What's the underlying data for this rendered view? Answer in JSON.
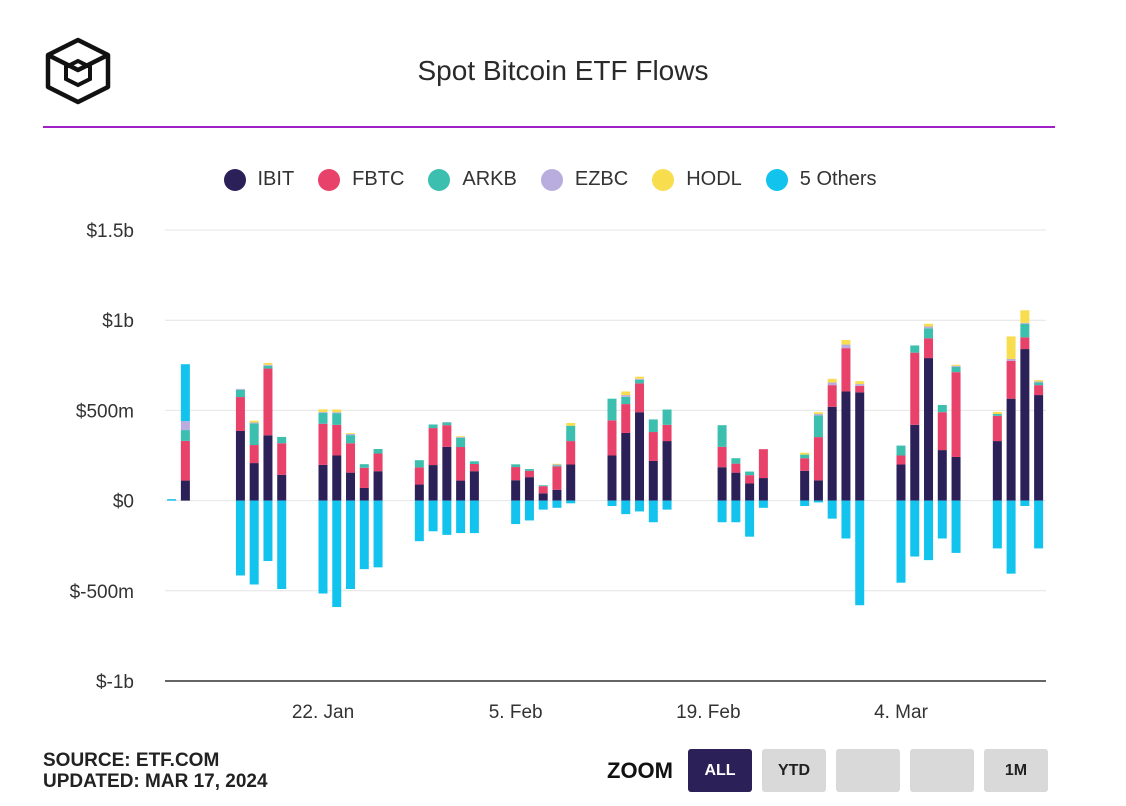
{
  "title": "Spot Bitcoin ETF Flows",
  "legend": [
    {
      "name": "IBIT",
      "color": "#2b2057"
    },
    {
      "name": "FBTC",
      "color": "#e8416a"
    },
    {
      "name": "ARKB",
      "color": "#3dbfb0"
    },
    {
      "name": "EZBC",
      "color": "#b9addf"
    },
    {
      "name": "HODL",
      "color": "#f8dd4e"
    },
    {
      "name": "5 Others",
      "color": "#12c3ee"
    }
  ],
  "footer": {
    "source": "SOURCE: ETF.COM",
    "updated": "UPDATED: MAR 17, 2024"
  },
  "zoom": {
    "label": "ZOOM",
    "buttons": [
      {
        "label": "ALL",
        "active": true
      },
      {
        "label": "YTD",
        "active": false
      },
      {
        "label": "",
        "active": false
      },
      {
        "label": "",
        "active": false
      },
      {
        "label": "1M",
        "active": false
      }
    ]
  },
  "chart_data": {
    "type": "bar",
    "stacked": true,
    "ylim": [
      -1000,
      1500
    ],
    "y_unit": "USD millions",
    "y_ticks": [
      -1000,
      -500,
      0,
      500,
      1000,
      1500
    ],
    "y_tick_labels": [
      "$-1b",
      "$-500m",
      "$0",
      "$500m",
      "$1b",
      "$1.5b"
    ],
    "x_tick_labels": [
      "22. Jan",
      "5. Feb",
      "19. Feb",
      "4. Mar"
    ],
    "x_tick_dates": [
      "2024-01-22",
      "2024-02-05",
      "2024-02-19",
      "2024-03-04"
    ],
    "legend_position": "top",
    "grid": true,
    "dates": [
      "2024-01-11",
      "2024-01-12",
      "2024-01-16",
      "2024-01-17",
      "2024-01-18",
      "2024-01-19",
      "2024-01-22",
      "2024-01-23",
      "2024-01-24",
      "2024-01-25",
      "2024-01-26",
      "2024-01-29",
      "2024-01-30",
      "2024-01-31",
      "2024-02-01",
      "2024-02-02",
      "2024-02-05",
      "2024-02-06",
      "2024-02-07",
      "2024-02-08",
      "2024-02-09",
      "2024-02-12",
      "2024-02-13",
      "2024-02-14",
      "2024-02-15",
      "2024-02-16",
      "2024-02-20",
      "2024-02-21",
      "2024-02-22",
      "2024-02-23",
      "2024-02-26",
      "2024-02-27",
      "2024-02-28",
      "2024-02-29",
      "2024-03-01",
      "2024-03-04",
      "2024-03-05",
      "2024-03-06",
      "2024-03-07",
      "2024-03-08",
      "2024-03-11",
      "2024-03-12",
      "2024-03-13",
      "2024-03-14"
    ],
    "series": [
      {
        "name": "IBIT",
        "values": [
          0,
          111,
          386,
          208,
          362,
          143,
          198,
          250,
          155,
          70,
          163,
          89,
          197,
          298,
          111,
          163,
          113,
          130,
          40,
          60,
          200,
          250,
          375,
          490,
          220,
          330,
          185,
          155,
          95,
          125,
          165,
          112,
          520,
          605,
          600,
          200,
          420,
          790,
          280,
          242,
          330,
          565,
          840,
          585
        ]
      },
      {
        "name": "FBTC",
        "values": [
          0,
          220,
          188,
          100,
          370,
          175,
          228,
          170,
          163,
          112,
          98,
          95,
          205,
          120,
          186,
          40,
          73,
          35,
          40,
          130,
          130,
          195,
          160,
          160,
          160,
          90,
          113,
          50,
          46,
          160,
          70,
          240,
          120,
          240,
          36,
          50,
          400,
          110,
          210,
          470,
          140,
          210,
          65,
          55
        ]
      },
      {
        "name": "ARKB",
        "values": [
          0,
          60,
          40,
          120,
          15,
          35,
          60,
          65,
          45,
          20,
          25,
          40,
          20,
          15,
          50,
          15,
          15,
          10,
          5,
          6,
          85,
          120,
          40,
          20,
          70,
          85,
          120,
          30,
          20,
          0,
          20,
          120,
          0,
          0,
          0,
          55,
          40,
          55,
          40,
          30,
          10,
          0,
          75,
          15
        ]
      },
      {
        "name": "EZBC",
        "values": [
          0,
          50,
          5,
          5,
          6,
          0,
          5,
          5,
          6,
          0,
          0,
          0,
          0,
          2,
          5,
          0,
          0,
          0,
          0,
          4,
          0,
          0,
          10,
          5,
          0,
          0,
          0,
          0,
          0,
          0,
          0,
          8,
          15,
          20,
          10,
          0,
          0,
          10,
          0,
          5,
          0,
          10,
          5,
          5
        ]
      },
      {
        "name": "HODL",
        "values": [
          0,
          0,
          0,
          10,
          10,
          0,
          15,
          15,
          5,
          0,
          0,
          0,
          0,
          0,
          5,
          0,
          0,
          0,
          0,
          4,
          15,
          0,
          20,
          12,
          0,
          0,
          0,
          0,
          0,
          0,
          10,
          10,
          20,
          25,
          16,
          0,
          0,
          15,
          0,
          6,
          12,
          125,
          70,
          8
        ]
      },
      {
        "name": "5 Others",
        "values": [
          0,
          315,
          0,
          0,
          0,
          0,
          0,
          0,
          0,
          0,
          0,
          0,
          0,
          0,
          0,
          0,
          0,
          0,
          0,
          0,
          0,
          0,
          0,
          0,
          0,
          0,
          0,
          0,
          0,
          0,
          0,
          0,
          0,
          0,
          0,
          0,
          0,
          0,
          0,
          0,
          0,
          0,
          0,
          0
        ]
      }
    ],
    "outflows": {
      "name": "5 Others",
      "values": [
        8,
        0,
        -415,
        -465,
        -335,
        -490,
        -515,
        -590,
        -490,
        -380,
        -370,
        -225,
        -170,
        -190,
        -180,
        -180,
        -130,
        -110,
        -50,
        -40,
        -15,
        -30,
        -75,
        -60,
        -120,
        -50,
        -120,
        -120,
        -200,
        -40,
        -30,
        -10,
        -100,
        -210,
        -580,
        -455,
        -310,
        -330,
        -210,
        -290,
        -265,
        -405,
        -30,
        -265
      ]
    }
  }
}
